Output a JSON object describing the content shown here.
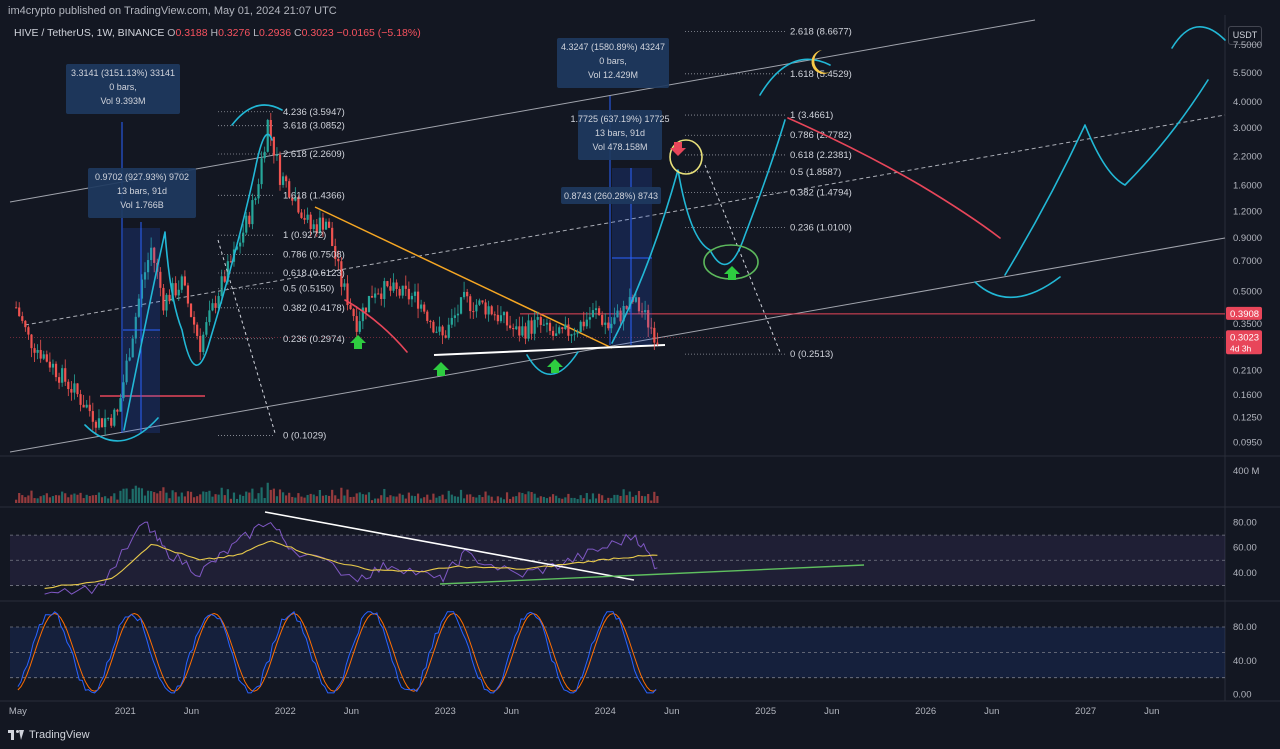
{
  "header": {
    "publisher": "im4crypto published on TradingView.com, May 01, 2024 21:07 UTC",
    "symbol": "HIVE / TetherUS, 1W, BINANCE",
    "ohlc": [
      {
        "label": "O",
        "value": "0.3188"
      },
      {
        "label": "H",
        "value": "0.3276"
      },
      {
        "label": "L",
        "value": "0.2936"
      },
      {
        "label": "C",
        "value": "0.3023"
      }
    ],
    "change": "−0.0165 (−5.18%)",
    "currency": "USDT"
  },
  "footer": {
    "brand": "TradingView"
  },
  "colors": {
    "background": "#131722",
    "up": "#26a69a",
    "down": "#ef5350",
    "cyan": "#22b8d6",
    "orange": "#f5a623",
    "yellow": "#e8e07a",
    "green": "#5cb85c",
    "red": "#e8465a",
    "blue": "#2962ff",
    "rsi": "#7e57c2",
    "rsi_ma": "#e6c84b",
    "stoch_k": "#2962ff",
    "stoch_d": "#ff6d00"
  },
  "chart_data": [
    {
      "type": "candlestick",
      "title": "HIVE / TetherUS, 1W, BINANCE",
      "scale": "log",
      "ylim": [
        0.083,
        10.4
      ],
      "y_ticks": [
        "7.5000",
        "5.5000",
        "4.0000",
        "3.0000",
        "2.2000",
        "1.6000",
        "1.2000",
        "0.9000",
        "0.7000",
        "0.5000",
        "0.3500",
        "0.2100",
        "0.1600",
        "0.1250",
        "0.0950"
      ],
      "y_tick_values": [
        7.5,
        5.5,
        4.0,
        3.0,
        2.2,
        1.6,
        1.2,
        0.9,
        0.7,
        0.5,
        0.35,
        0.21,
        0.16,
        0.125,
        0.095
      ],
      "x_ticks": [
        "May",
        "2021",
        "Jun",
        "2022",
        "Jun",
        "2023",
        "Jun",
        "2024",
        "Jun",
        "2025",
        "Jun",
        "2026",
        "Jun",
        "2027",
        "Jun"
      ],
      "x_tick_dates": [
        "2020-05-01",
        "2021-01-01",
        "2021-06-01",
        "2022-01-01",
        "2022-06-01",
        "2023-01-01",
        "2023-06-01",
        "2024-01-01",
        "2024-06-01",
        "2025-01-01",
        "2025-06-01",
        "2026-01-01",
        "2026-06-01",
        "2027-01-01",
        "2027-06-01"
      ],
      "price_path": [
        [
          "2020-04-27",
          0.42
        ],
        [
          "2020-05-25",
          0.3
        ],
        [
          "2020-07-13",
          0.23
        ],
        [
          "2020-09-14",
          0.16
        ],
        [
          "2020-11-02",
          0.12
        ],
        [
          "2020-12-14",
          0.13
        ],
        [
          "2021-02-08",
          0.55
        ],
        [
          "2021-03-01",
          0.8
        ],
        [
          "2021-03-29",
          0.45
        ],
        [
          "2021-05-10",
          0.55
        ],
        [
          "2021-06-21",
          0.28
        ],
        [
          "2021-08-02",
          0.5
        ],
        [
          "2021-09-13",
          0.8
        ],
        [
          "2021-10-25",
          1.4
        ],
        [
          "2021-11-22",
          3.2
        ],
        [
          "2021-12-20",
          1.8
        ],
        [
          "2022-01-17",
          1.5
        ],
        [
          "2022-02-28",
          1.0
        ],
        [
          "2022-04-04",
          1.1
        ],
        [
          "2022-05-09",
          0.55
        ],
        [
          "2022-06-13",
          0.36
        ],
        [
          "2022-07-25",
          0.52
        ],
        [
          "2022-09-05",
          0.5
        ],
        [
          "2022-10-31",
          0.46
        ],
        [
          "2022-12-26",
          0.3
        ],
        [
          "2023-02-13",
          0.45
        ],
        [
          "2023-04-10",
          0.42
        ],
        [
          "2023-06-12",
          0.32
        ],
        [
          "2023-07-31",
          0.35
        ],
        [
          "2023-09-11",
          0.3
        ],
        [
          "2023-10-30",
          0.34
        ],
        [
          "2023-12-11",
          0.4
        ],
        [
          "2024-01-08",
          0.34
        ],
        [
          "2024-03-04",
          0.45
        ],
        [
          "2024-03-25",
          0.4
        ],
        [
          "2024-04-29",
          0.3023
        ]
      ],
      "horizontal_lines": [
        {
          "price": 0.3908,
          "label": "0.3908",
          "color": "#e8465a"
        }
      ],
      "last_price": {
        "value": "0.3023",
        "countdown": "4d 3h"
      },
      "fib_left": {
        "levels": [
          {
            "label": "4.236 (3.5947)",
            "price": 3.5947
          },
          {
            "label": "3.618 (3.0852)",
            "price": 3.0852
          },
          {
            "label": "2.618 (2.2609)",
            "price": 2.2609
          },
          {
            "label": "1.618 (1.4366)",
            "price": 1.4366
          },
          {
            "label": "1 (0.9272)",
            "price": 0.9272
          },
          {
            "label": "0.786 (0.7508)",
            "price": 0.7508
          },
          {
            "label": "0.618 (0.6123)",
            "price": 0.6123
          },
          {
            "label": "0.5 (0.5150)",
            "price": 0.515
          },
          {
            "label": "0.382 (0.4178)",
            "price": 0.4178
          },
          {
            "label": "0.236 (0.2974)",
            "price": 0.2974
          },
          {
            "label": "0 (0.1029)",
            "price": 0.1029
          }
        ]
      },
      "fib_right": {
        "levels": [
          {
            "label": "2.618 (8.6677)",
            "price": 8.6677
          },
          {
            "label": "1.618 (5.4529)",
            "price": 5.4529
          },
          {
            "label": "1 (3.4661)",
            "price": 3.4661
          },
          {
            "label": "0.786 (2.7782)",
            "price": 2.7782
          },
          {
            "label": "0.618 (2.2381)",
            "price": 2.2381
          },
          {
            "label": "0.5 (1.8587)",
            "price": 1.8587
          },
          {
            "label": "0.382 (1.4794)",
            "price": 1.4794
          },
          {
            "label": "0.236 (1.0100)",
            "price": 1.01
          },
          {
            "label": "0 (0.2513)",
            "price": 0.2513
          }
        ]
      },
      "measure_boxes": [
        {
          "lines": [
            "3.3141 (3151.13%) 33141",
            "0 bars,",
            "Vol 9.393M"
          ]
        },
        {
          "lines": [
            "0.9702 (927.93%) 9702",
            "13 bars, 91d",
            "Vol 1.766B"
          ]
        },
        {
          "lines": [
            "4.3247 (1580.89%) 43247",
            "0 bars,",
            "Vol 12.429M"
          ]
        },
        {
          "lines": [
            "1.7725 (637.19%) 17725",
            "13 bars, 91d",
            "Vol 478.158M"
          ]
        },
        {
          "lines": [
            "0.8743 (260.28%) 8743"
          ]
        }
      ]
    },
    {
      "type": "bar",
      "title": "Volume",
      "y_ticks": [
        "400 M"
      ],
      "y_tick_values": [
        400
      ],
      "units": "M"
    },
    {
      "type": "line",
      "title": "RSI",
      "ylim": [
        20,
        90
      ],
      "y_ticks": [
        "80.00",
        "60.00",
        "40.00"
      ],
      "y_tick_values": [
        80,
        60,
        40
      ],
      "bands": [
        30,
        50,
        70
      ],
      "series": [
        {
          "values": [
            [
              "2020-07-01",
              27
            ],
            [
              "2020-11-01",
              28
            ],
            [
              "2021-02-15",
              80
            ],
            [
              "2021-04-01",
              58
            ],
            [
              "2021-06-20",
              40
            ],
            [
              "2021-09-01",
              60
            ],
            [
              "2021-11-22",
              82
            ],
            [
              "2022-01-15",
              60
            ],
            [
              "2022-06-15",
              36
            ],
            [
              "2022-09-01",
              47
            ],
            [
              "2022-12-20",
              34
            ],
            [
              "2023-02-15",
              55
            ],
            [
              "2023-06-15",
              38
            ],
            [
              "2023-09-15",
              46
            ],
            [
              "2023-12-15",
              58
            ],
            [
              "2024-03-10",
              70
            ],
            [
              "2024-04-29",
              44
            ]
          ]
        },
        {
          "values": [
            [
              "2020-07-01",
              28
            ],
            [
              "2020-12-01",
              35
            ],
            [
              "2021-03-01",
              63
            ],
            [
              "2021-06-20",
              50
            ],
            [
              "2021-09-15",
              54
            ],
            [
              "2021-12-01",
              66
            ],
            [
              "2022-03-01",
              54
            ],
            [
              "2022-07-01",
              43
            ],
            [
              "2022-11-01",
              41
            ],
            [
              "2023-02-01",
              45
            ],
            [
              "2023-07-01",
              43
            ],
            [
              "2023-11-01",
              48
            ],
            [
              "2024-02-01",
              52
            ],
            [
              "2024-04-29",
              54
            ]
          ]
        }
      ]
    },
    {
      "type": "line",
      "title": "Stochastic",
      "ylim": [
        -4,
        106
      ],
      "y_ticks": [
        "80.00",
        "40.00",
        "0.00"
      ],
      "y_tick_values": [
        80,
        40,
        0
      ],
      "bands": [
        20,
        50,
        80
      ]
    }
  ]
}
